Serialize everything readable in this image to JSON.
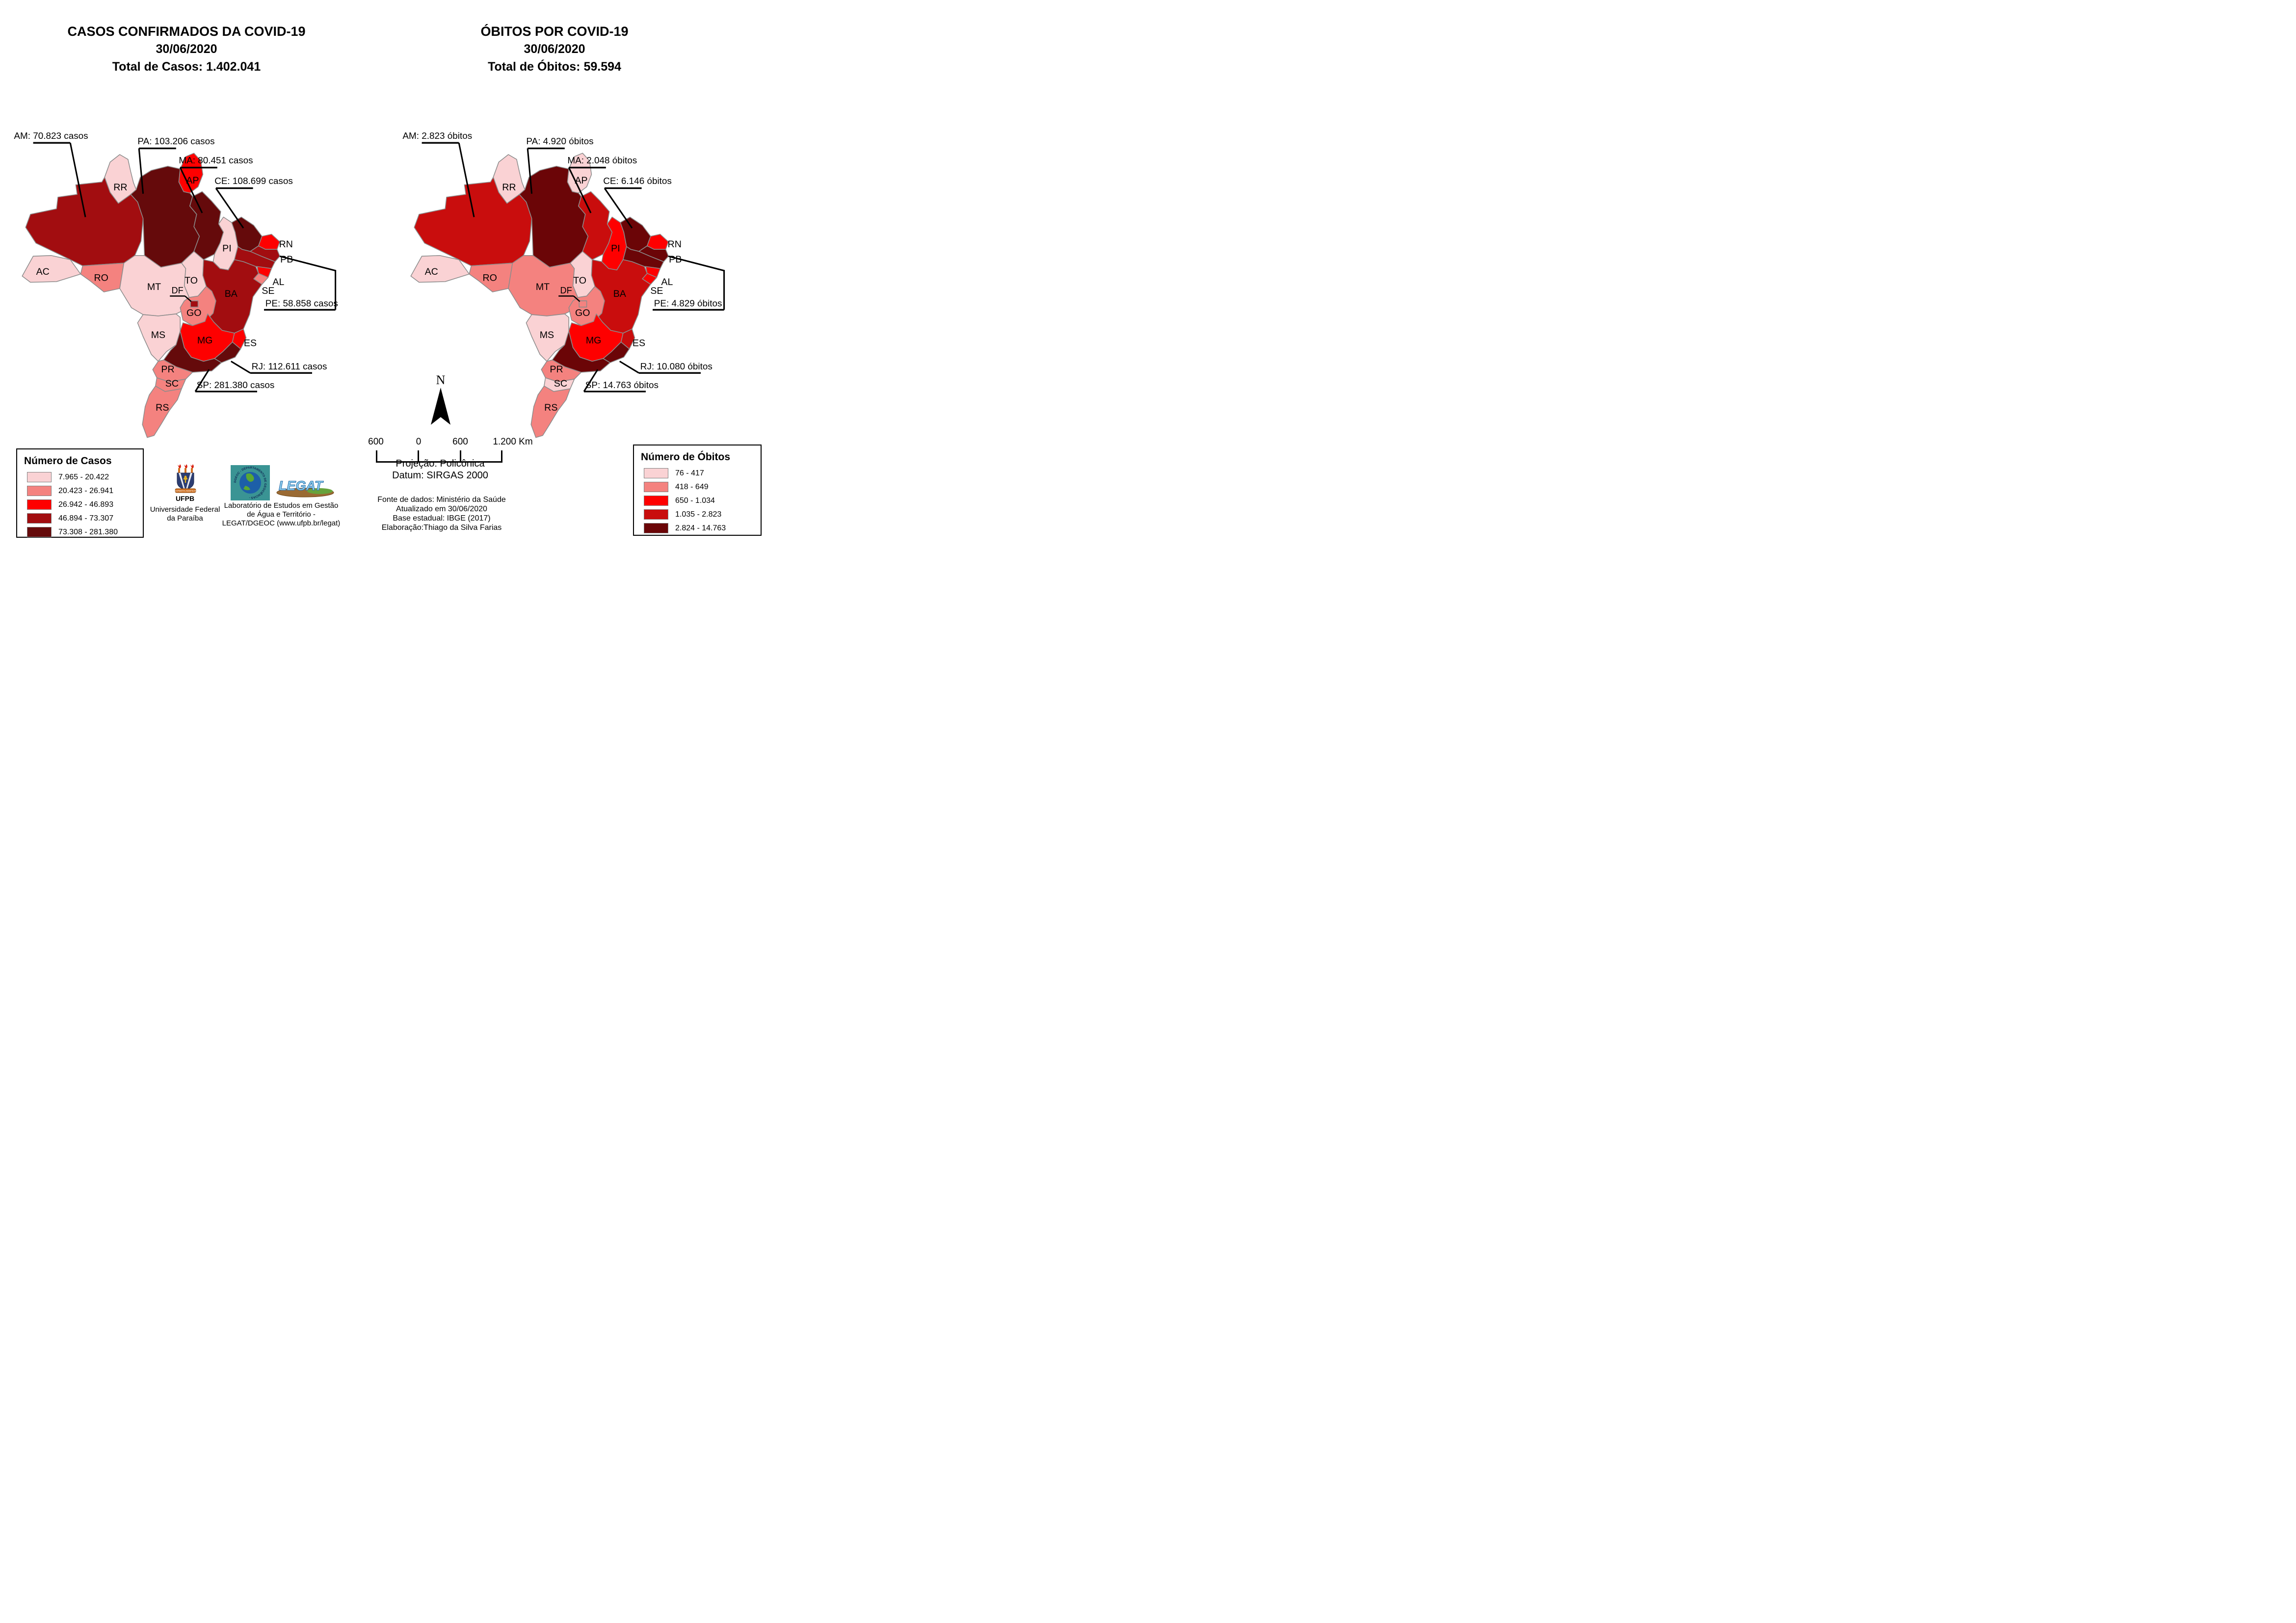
{
  "left_panel": {
    "title_lines": [
      "CASOS CONFIRMADOS DA COVID-19",
      "30/06/2020",
      "Total de Casos: 1.402.041"
    ],
    "legend": {
      "title": "Número de Casos",
      "classes": [
        {
          "label": "7.965 - 20.422",
          "color": "#FAD2D4"
        },
        {
          "label": "20.423 - 26.941",
          "color": "#F4827F"
        },
        {
          "label": "26.942 - 46.893",
          "color": "#FE0000"
        },
        {
          "label": "46.894 - 73.307",
          "color": "#A20D10"
        },
        {
          "label": "73.308 - 281.380",
          "color": "#650A0B"
        }
      ]
    },
    "annotations": {
      "AM": "AM: 70.823 casos",
      "PA": "PA: 103.206 casos",
      "MA": "MA: 80.451 casos",
      "CE": "CE: 108.699 casos",
      "PE": "PE: 58.858  casos",
      "RJ": "RJ: 112.611 casos",
      "SP": "SP: 281.380 casos"
    },
    "state_classes": {
      "AC": 0,
      "AM": 3,
      "RR": 0,
      "AP": 2,
      "PA": 4,
      "MA": 4,
      "PI": 0,
      "CE": 4,
      "RN": 2,
      "PB": 3,
      "PE": 3,
      "AL": 2,
      "SE": 1,
      "TO": 0,
      "BA": 3,
      "RO": 1,
      "MT": 0,
      "DF": 3,
      "GO": 1,
      "MS": 0,
      "MG": 2,
      "ES": 2,
      "RJ": 4,
      "SP": 4,
      "PR": 1,
      "SC": 1,
      "RS": 1
    }
  },
  "right_panel": {
    "title_lines": [
      "ÓBITOS POR COVID-19",
      "30/06/2020",
      "Total de Óbitos: 59.594"
    ],
    "legend": {
      "title": "Número de Óbitos",
      "classes": [
        {
          "label": "76 - 417",
          "color": "#FAD2D4"
        },
        {
          "label": "418 - 649",
          "color": "#F4827F"
        },
        {
          "label": "650 - 1.034",
          "color": "#FE0000"
        },
        {
          "label": "1.035 - 2.823",
          "color": "#C90D0D"
        },
        {
          "label": "2.824 - 14.763",
          "color": "#6B0507"
        }
      ]
    },
    "annotations": {
      "AM": "AM: 2.823 óbitos",
      "PA": "PA: 4.920 óbitos",
      "MA": "MA: 2.048 óbitos",
      "CE": "CE: 6.146 óbitos",
      "PE": "PE: 4.829 óbitos",
      "RJ": "RJ: 10.080 óbitos",
      "SP": "SP: 14.763 óbitos"
    },
    "state_classes": {
      "AC": 0,
      "AM": 3,
      "RR": 0,
      "AP": 0,
      "PA": 4,
      "MA": 3,
      "PI": 2,
      "CE": 4,
      "RN": 2,
      "PB": 4,
      "PE": 4,
      "AL": 2,
      "SE": 2,
      "TO": 0,
      "BA": 3,
      "RO": 1,
      "MT": 1,
      "DF": 1,
      "GO": 1,
      "MS": 0,
      "MG": 2,
      "ES": 3,
      "RJ": 4,
      "SP": 4,
      "PR": 1,
      "SC": 0,
      "RS": 1
    }
  },
  "state_labels": {
    "RR": "RR",
    "AP": "AP",
    "AC": "AC",
    "RO": "RO",
    "MT": "MT",
    "TO": "TO",
    "PI": "PI",
    "RN": "RN",
    "PB": "PB",
    "AL": "AL",
    "SE": "SE",
    "BA": "BA",
    "DF": "DF",
    "GO": "GO",
    "MS": "MS",
    "MG": "MG",
    "ES": "ES",
    "PR": "PR",
    "SC": "SC",
    "RS": "RS"
  },
  "footer": {
    "north_label": "N",
    "scale_labels": [
      "600",
      "0",
      "600",
      "1.200 Km"
    ],
    "projection": "Projeção: Policônica",
    "datum": "Datum: SIRGAS 2000",
    "source_lines": [
      "Fonte de dados: Ministério da Saúde",
      "Atualizado em 30/06/2020",
      "Base estadual: IBGE (2017)",
      "Elaboração:Thiago da Silva Farias"
    ]
  },
  "logos": {
    "ufpb_label": "UFPB",
    "ufpb_motto": "SAPIENTIA AEDIFICAT",
    "ufpb_caption_lines": [
      "Universidade Federal",
      "da Paraíba"
    ],
    "legat_text": "LEGAT",
    "dgeoc_ring_text": "DGEOC - DEPARTAMENTO DE GEOCIÊNCIAS -",
    "legat_caption_lines": [
      "Laboratório de Estudos em Gestão",
      "de Água e Território -",
      "LEGAT/DGEOC (www.ufpb.br/legat)"
    ]
  },
  "border_color": "#8c8c8c"
}
